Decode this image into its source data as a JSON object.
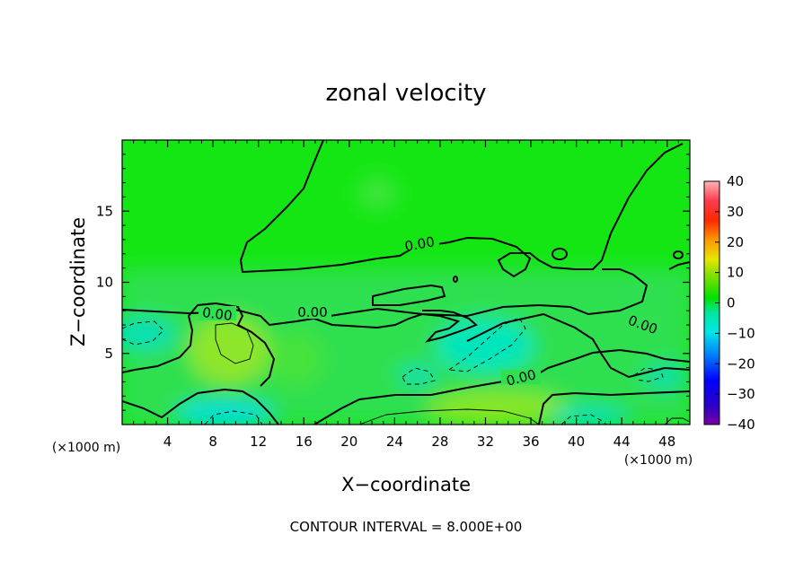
{
  "chart_data": {
    "type": "heatmap",
    "title": "zonal velocity",
    "xlabel": "X−coordinate",
    "ylabel": "Z−coordinate",
    "x_unit_left": "(×1000 m)",
    "x_unit_right": "(×1000 m)",
    "xlim": [
      0,
      50
    ],
    "ylim": [
      0,
      20
    ],
    "x_ticks": [
      4,
      8,
      12,
      16,
      20,
      24,
      28,
      32,
      36,
      40,
      44,
      48
    ],
    "x_tick_labels": [
      "4",
      "8",
      "12",
      "16",
      "20",
      "24",
      "28",
      "32",
      "36",
      "40",
      "44",
      "48"
    ],
    "y_ticks": [
      5,
      10,
      15
    ],
    "y_tick_labels": [
      "5",
      "10",
      "15"
    ],
    "colorbar": {
      "min": -40,
      "max": 40,
      "ticks": [
        40,
        30,
        20,
        10,
        0,
        -10,
        -20,
        -30,
        -40
      ],
      "tick_labels": [
        "40",
        "30",
        "20",
        "10",
        "0",
        "−10",
        "−20",
        "−30",
        "−40"
      ]
    },
    "contour_interval": 8,
    "contour_labels": [
      "0.00",
      "0.00",
      "0.00",
      "0.00",
      "0.00"
    ],
    "note": "CONTOUR INTERVAL = 8.000E+00",
    "field_regions": [
      {
        "x": [
          0,
          50
        ],
        "z": [
          9.5,
          20
        ],
        "value": 0
      },
      {
        "x": [
          0,
          6
        ],
        "z": [
          5,
          7.5
        ],
        "value": -6
      },
      {
        "x": [
          6,
          12
        ],
        "z": [
          3,
          7
        ],
        "value": 7
      },
      {
        "x": [
          29,
          36
        ],
        "z": [
          3.5,
          7
        ],
        "value": -8
      },
      {
        "x": [
          22,
          25
        ],
        "z": [
          3,
          4
        ],
        "value": -7
      },
      {
        "x": [
          7,
          12
        ],
        "z": [
          0,
          1
        ],
        "value": -10
      },
      {
        "x": [
          20,
          36
        ],
        "z": [
          0,
          2
        ],
        "value": 6
      },
      {
        "x": [
          38,
          44
        ],
        "z": [
          0,
          1
        ],
        "value": -6
      }
    ]
  }
}
